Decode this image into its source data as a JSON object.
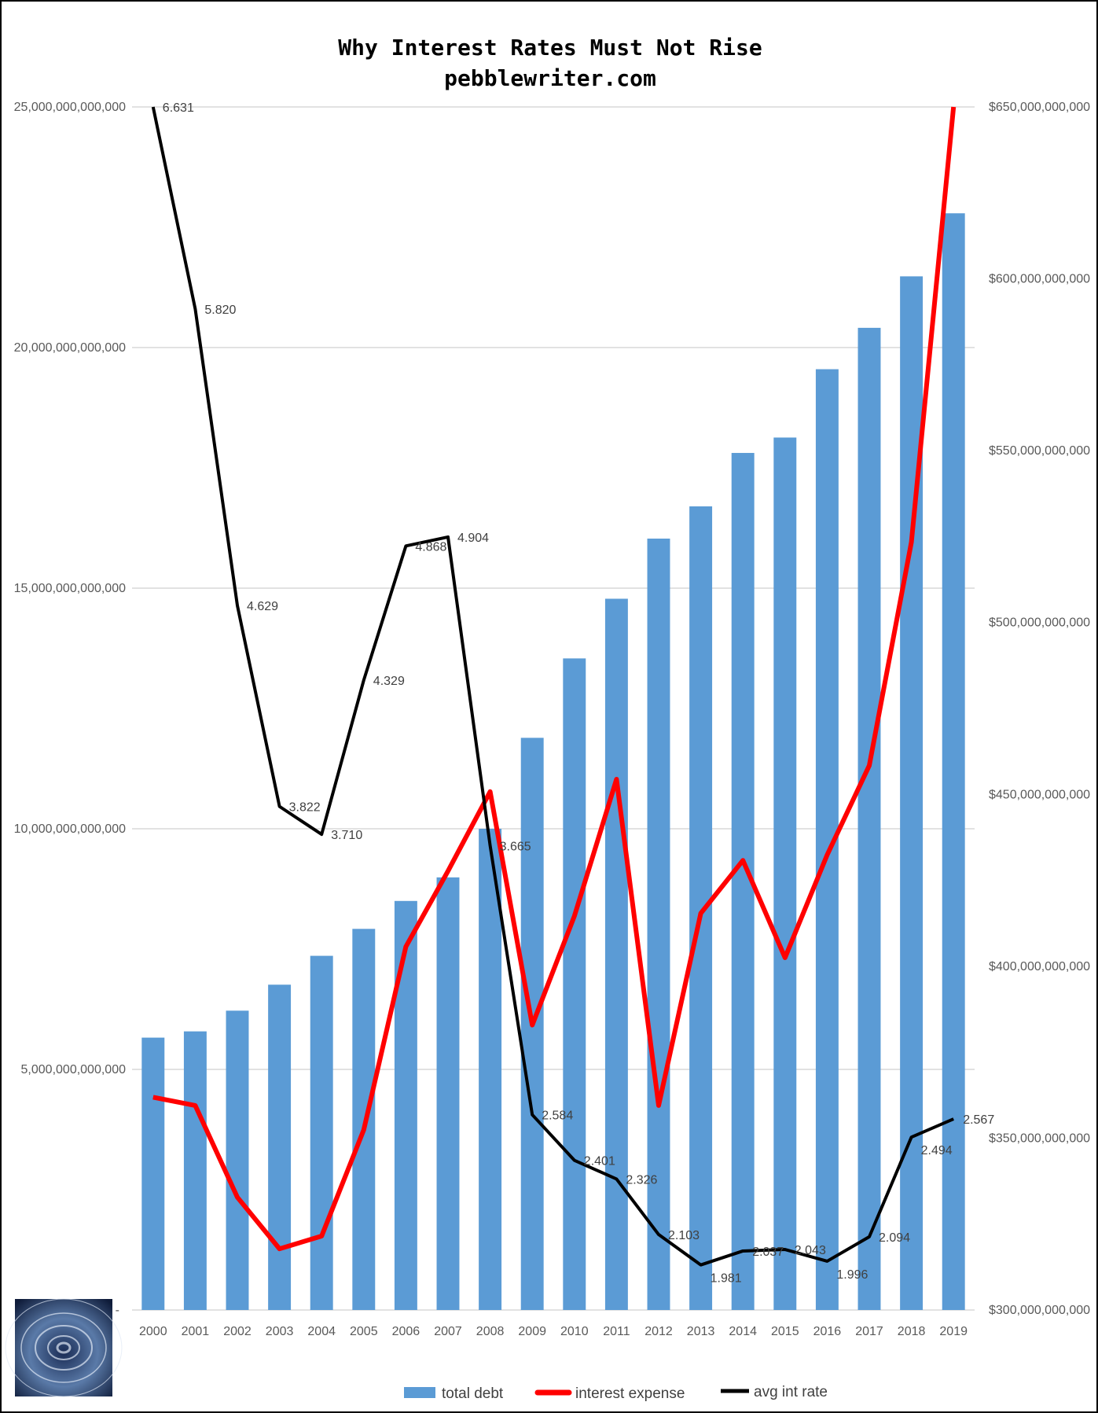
{
  "chart_data": {
    "type": "bar",
    "title": "Why Interest Rates Must Not Rise",
    "subtitle": "pebblewriter.com",
    "categories": [
      "2000",
      "2001",
      "2002",
      "2003",
      "2004",
      "2005",
      "2006",
      "2007",
      "2008",
      "2009",
      "2010",
      "2011",
      "2012",
      "2013",
      "2014",
      "2015",
      "2016",
      "2017",
      "2018",
      "2019"
    ],
    "series": [
      {
        "name": "total debt",
        "type": "bar",
        "axis": "left",
        "color": "#5B9BD5",
        "values": [
          5660000000000.0,
          5790000000000.0,
          6220000000000.0,
          6760000000000.0,
          7360000000000.0,
          7920000000000.0,
          8500000000000.0,
          8990000000000.0,
          10000000000000.0,
          11890000000000.0,
          13540000000000.0,
          14780000000000.0,
          16030000000000.0,
          16700000000000.0,
          17810000000000.0,
          18130000000000.0,
          19550000000000.0,
          20410000000000.0,
          21480000000000.0,
          22790000000000.0
        ]
      },
      {
        "name": "interest expense",
        "type": "line",
        "axis": "right",
        "color": "#FF0000",
        "values": [
          361900000000.0,
          359500000000.0,
          332800000000.0,
          317800000000.0,
          321500000000.0,
          352400000000.0,
          405700000000.0,
          427700000000.0,
          450800000000.0,
          382900000000.0,
          414600000000.0,
          454400000000.0,
          359500000000.0,
          415400000000.0,
          430800000000.0,
          402500000000.0,
          432400000000.0,
          458400000000.0,
          523400000000.0,
          650000000000.0
        ]
      },
      {
        "name": "avg int rate",
        "type": "line",
        "axis": "hidden",
        "color": "#000000",
        "values": [
          6.631,
          5.82,
          4.629,
          3.822,
          3.71,
          4.329,
          4.868,
          4.904,
          3.665,
          2.584,
          2.401,
          2.326,
          2.103,
          1.981,
          2.037,
          2.043,
          1.996,
          2.094,
          2.494,
          2.567
        ],
        "labels": [
          "6.631",
          "5.820",
          "4.629",
          "3.822",
          "3.710",
          "4.329",
          "4.868",
          "4.904",
          "3.665",
          "2.584",
          "2.401",
          "2.326",
          "2.103",
          "1.981",
          "2.037",
          "2.043",
          "1.996",
          "2.094",
          "2.494",
          "2.567"
        ]
      }
    ],
    "left_axis": {
      "ylim": [
        0,
        25000000000000
      ],
      "ticks": [
        "-",
        "5,000,000,000,000",
        "10,000,000,000,000",
        "15,000,000,000,000",
        "20,000,000,000,000",
        "25,000,000,000,000"
      ]
    },
    "right_axis": {
      "ylim": [
        300000000000,
        650000000000
      ],
      "ticks": [
        "$300,000,000,000",
        "$350,000,000,000",
        "$400,000,000,000",
        "$450,000,000,000",
        "$500,000,000,000",
        "$550,000,000,000",
        "$600,000,000,000",
        "$650,000,000,000"
      ]
    },
    "rate_axis": {
      "ylim": [
        1.8,
        6.631
      ]
    },
    "grid": true,
    "legend_position": "bottom"
  }
}
